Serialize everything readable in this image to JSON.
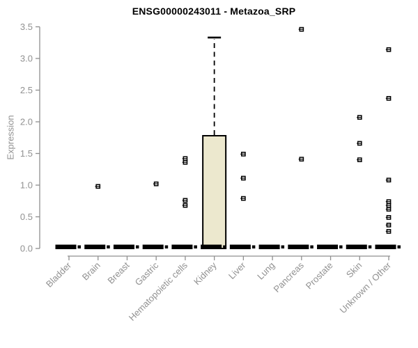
{
  "chart_data": {
    "type": "boxplot",
    "title": "ENSG00000243011 - Metazoa_SRP",
    "ylabel": "Expression",
    "xlabel": "",
    "ylim": [
      0,
      3.5
    ],
    "yticks": [
      0.0,
      0.5,
      1.0,
      1.5,
      2.0,
      2.5,
      3.0,
      3.5
    ],
    "grid": false,
    "legend_position": "none",
    "categories": [
      "Bladder",
      "Brain",
      "Breast",
      "Gastric",
      "Hematopoietic cells",
      "Kidney",
      "Liver",
      "Lung",
      "Pancreas",
      "Prostate",
      "Skin",
      "Unknown / Other"
    ],
    "series": [
      {
        "category": "Bladder",
        "box": {
          "whisker_low": 0,
          "q1": 0,
          "median": 0,
          "q3": 0,
          "whisker_high": 0
        },
        "points": []
      },
      {
        "category": "Brain",
        "box": {
          "whisker_low": 0,
          "q1": 0,
          "median": 0,
          "q3": 0,
          "whisker_high": 0
        },
        "points": [
          0.98
        ]
      },
      {
        "category": "Breast",
        "box": {
          "whisker_low": 0,
          "q1": 0,
          "median": 0,
          "q3": 0,
          "whisker_high": 0
        },
        "points": []
      },
      {
        "category": "Gastric",
        "box": {
          "whisker_low": 0,
          "q1": 0,
          "median": 0,
          "q3": 0,
          "whisker_high": 0
        },
        "points": [
          1.02
        ]
      },
      {
        "category": "Hematopoietic cells",
        "box": {
          "whisker_low": 0,
          "q1": 0,
          "median": 0,
          "q3": 0,
          "whisker_high": 0
        },
        "points": [
          1.42,
          1.36,
          0.76,
          0.68
        ]
      },
      {
        "category": "Kidney",
        "box": {
          "whisker_low": 0,
          "q1": 0,
          "median": 0,
          "q3": 1.78,
          "whisker_high": 3.33
        },
        "points": []
      },
      {
        "category": "Liver",
        "box": {
          "whisker_low": 0,
          "q1": 0,
          "median": 0,
          "q3": 0,
          "whisker_high": 0
        },
        "points": [
          1.49,
          1.11,
          0.79
        ]
      },
      {
        "category": "Lung",
        "box": {
          "whisker_low": 0,
          "q1": 0,
          "median": 0,
          "q3": 0,
          "whisker_high": 0
        },
        "points": []
      },
      {
        "category": "Pancreas",
        "box": {
          "whisker_low": 0,
          "q1": 0,
          "median": 0,
          "q3": 0,
          "whisker_high": 0
        },
        "points": [
          3.46,
          1.41
        ]
      },
      {
        "category": "Prostate",
        "box": {
          "whisker_low": 0,
          "q1": 0,
          "median": 0,
          "q3": 0,
          "whisker_high": 0
        },
        "points": []
      },
      {
        "category": "Skin",
        "box": {
          "whisker_low": 0,
          "q1": 0,
          "median": 0,
          "q3": 0,
          "whisker_high": 0
        },
        "points": [
          2.07,
          1.66,
          1.4
        ]
      },
      {
        "category": "Unknown / Other",
        "box": {
          "whisker_low": 0,
          "q1": 0,
          "median": 0,
          "q3": 0,
          "whisker_high": 0
        },
        "points": [
          3.14,
          2.37,
          1.08,
          0.74,
          0.68,
          0.62,
          0.49,
          0.37,
          0.27
        ]
      }
    ],
    "colors": {
      "background": "#ffffff",
      "box_fill": "#ece8ce",
      "box_border": "#000000",
      "median_bar": "#000000",
      "whisker": "#000000",
      "point": "#000000",
      "point_center": "#ffffff",
      "axis": "#8f8f8f",
      "tick_label": "#919191",
      "title": "#000000"
    }
  }
}
